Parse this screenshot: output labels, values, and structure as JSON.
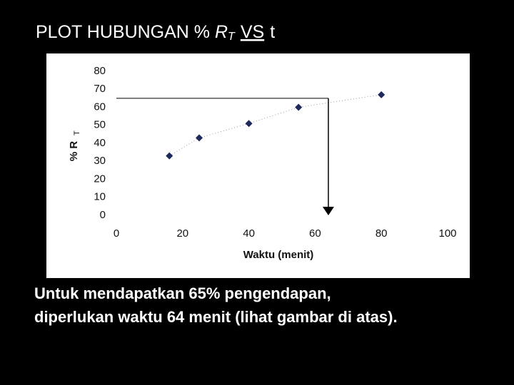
{
  "slide": {
    "title_parts": [
      "PLOT HUBUNGAN % ",
      "R",
      "T",
      "VS",
      "t"
    ],
    "caption_lines": [
      "Untuk mendapatkan 65% pengendapan,",
      "diperlukan waktu 64 menit (lihat gambar di atas)."
    ]
  },
  "chart_data": {
    "type": "scatter",
    "x": [
      16,
      25,
      40,
      55,
      80
    ],
    "values": [
      33,
      43,
      51,
      60,
      67
    ],
    "color": "#1f2a5c",
    "xlim": [
      0,
      100
    ],
    "xticks": [
      0,
      20,
      40,
      60,
      80,
      100
    ],
    "ylim": [
      0,
      80
    ],
    "yticks": [
      0,
      10,
      20,
      30,
      40,
      50,
      60,
      70,
      80
    ],
    "xlabel": "Waktu (menit)",
    "ylabel": "% R",
    "ylabel_sub": "T",
    "reference": {
      "y": 65,
      "x": 64
    },
    "trendline": true
  }
}
